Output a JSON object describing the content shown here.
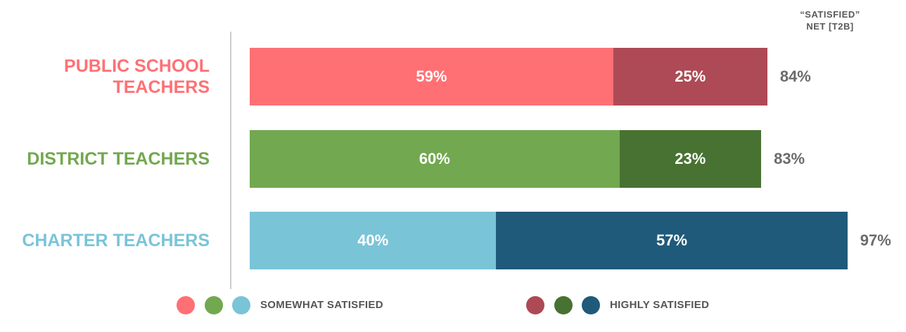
{
  "chart_data": {
    "type": "stacked-bar-horizontal",
    "net_title": "“SATISFIED” NET [T2B]",
    "categories": [
      "PUBLIC SCHOOL TEACHERS",
      "DISTRICT TEACHERS",
      "CHARTER TEACHERS"
    ],
    "series": [
      {
        "name": "SOMEWHAT SATISFIED",
        "colors": [
          "#ff7074",
          "#72a84f",
          "#7ac4d8"
        ],
        "values": [
          59,
          60,
          40
        ],
        "value_labels": [
          "59%",
          "60%",
          "40%"
        ]
      },
      {
        "name": "HIGHLY SATISFIED",
        "colors": [
          "#ad4a55",
          "#487232",
          "#1f5a7a"
        ],
        "values": [
          25,
          23,
          57
        ],
        "value_labels": [
          "25%",
          "23%",
          "57%"
        ]
      }
    ],
    "net": {
      "values": [
        84,
        83,
        97
      ],
      "value_labels": [
        "84%",
        "83%",
        "97%"
      ]
    }
  }
}
